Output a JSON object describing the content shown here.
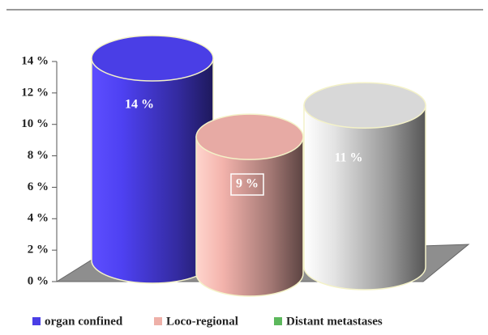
{
  "chart_data": {
    "type": "bar",
    "series": [
      {
        "name": "organ confined",
        "color": "#4a3ee6",
        "bar_color": "#4a3ee6",
        "values": [
          14
        ],
        "value_labels": [
          "14 %"
        ]
      },
      {
        "name": "Loco-regional",
        "color": "#eeb0a8",
        "bar_color": "#e7aaa4",
        "values": [
          9
        ],
        "value_labels": [
          "9 %"
        ]
      },
      {
        "name": "Distant metastases",
        "color": "#5cb85c",
        "bar_color": "#d8d8d8",
        "values": [
          11
        ],
        "value_labels": [
          "11 %"
        ]
      }
    ],
    "ylim": [
      0,
      14
    ],
    "yticks": [
      {
        "value": 0,
        "label": "0 %"
      },
      {
        "value": 2,
        "label": "2 %"
      },
      {
        "value": 4,
        "label": "4 %"
      },
      {
        "value": 6,
        "label": "6 %"
      },
      {
        "value": 8,
        "label": "8 %"
      },
      {
        "value": 10,
        "label": "10 %"
      },
      {
        "value": 12,
        "label": "12 %"
      },
      {
        "value": 14,
        "label": "14 %"
      }
    ],
    "legend": "bottom"
  }
}
